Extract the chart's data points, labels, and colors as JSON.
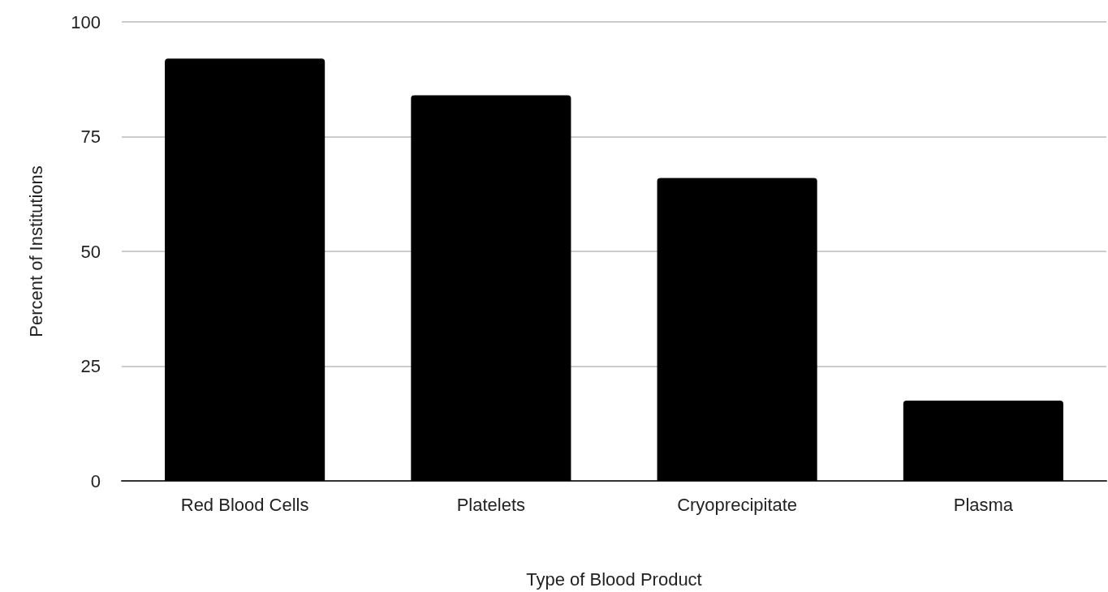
{
  "chart_data": {
    "type": "bar",
    "xlabel": "Type of Blood Product",
    "ylabel": "Percent of Institutions",
    "categories": [
      "Red Blood Cells",
      "Platelets",
      "Cryoprecipitate",
      "Plasma"
    ],
    "values": [
      92,
      84,
      66,
      17.5
    ],
    "color": "#000000",
    "ylim": [
      0,
      100
    ],
    "yticks": [
      0,
      25,
      50,
      75,
      100
    ],
    "grid": "y"
  }
}
